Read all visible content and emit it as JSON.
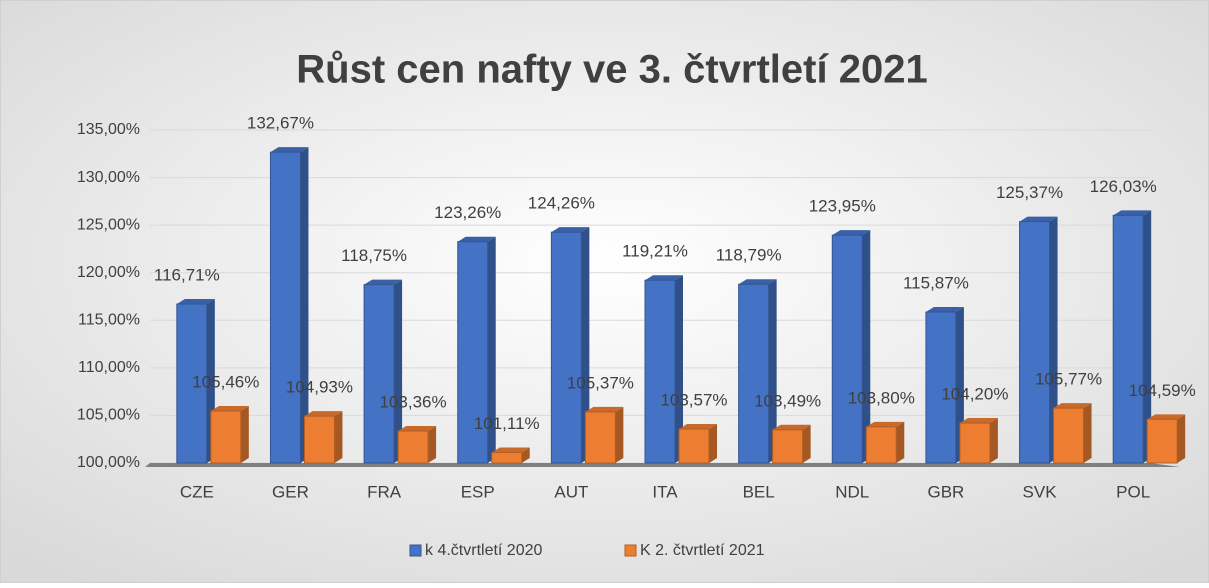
{
  "chart_data": {
    "type": "bar3d",
    "title": "Růst cen nafty ve 3. čtvrtletí 2021",
    "categories": [
      "CZE",
      "GER",
      "FRA",
      "ESP",
      "AUT",
      "ITA",
      "BEL",
      "NDL",
      "GBR",
      "SVK",
      "POL"
    ],
    "series": [
      {
        "name": "k 4.čtvrtletí 2020",
        "color": "#4472c4",
        "values": [
          116.71,
          132.67,
          118.75,
          123.26,
          124.26,
          119.21,
          118.79,
          123.95,
          115.87,
          125.37,
          126.03
        ],
        "value_labels": [
          "116,71%",
          "132,67%",
          "118,75%",
          "123,26%",
          "124,26%",
          "119,21%",
          "118,79%",
          "123,95%",
          "115,87%",
          "125,37%",
          "126,03%"
        ]
      },
      {
        "name": "K 2. čtvrtletí 2021",
        "color": "#ed7d31",
        "values": [
          105.46,
          104.93,
          103.36,
          101.11,
          105.37,
          103.57,
          103.49,
          103.8,
          104.2,
          105.77,
          104.59
        ],
        "value_labels": [
          "105,46%",
          "104,93%",
          "103,36%",
          "101,11%",
          "105,37%",
          "103,57%",
          "103,49%",
          "103,80%",
          "104,20%",
          "105,77%",
          "104,59%"
        ]
      }
    ],
    "ylim": [
      100,
      135
    ],
    "yticks": [
      {
        "value": 100,
        "label": "100,00%"
      },
      {
        "value": 105,
        "label": "105,00%"
      },
      {
        "value": 110,
        "label": "110,00%"
      },
      {
        "value": 115,
        "label": "115,00%"
      },
      {
        "value": 120,
        "label": "120,00%"
      },
      {
        "value": 125,
        "label": "125,00%"
      },
      {
        "value": 130,
        "label": "130,00%"
      },
      {
        "value": 135,
        "label": "135,00%"
      }
    ],
    "grid": true,
    "legend": "bottom"
  }
}
